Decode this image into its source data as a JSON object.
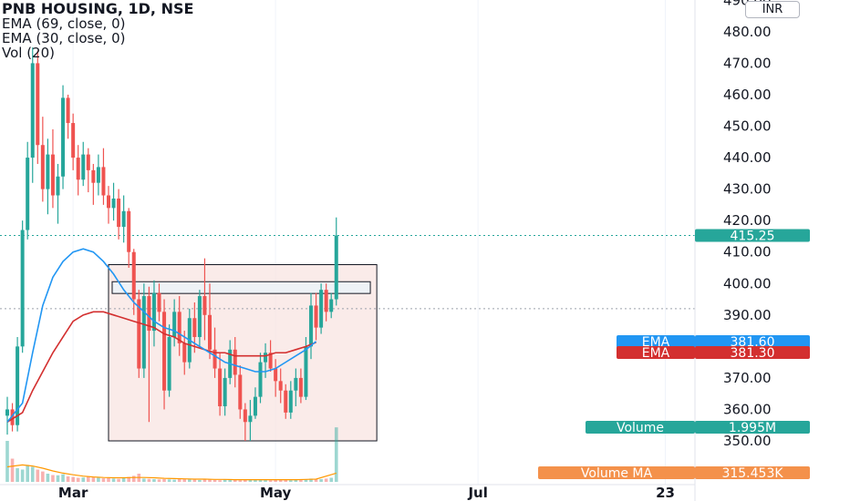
{
  "legend": {
    "title": "PNB HOUSING, 1D, NSE",
    "ema69": "EMA (69, close, 0)",
    "ema30": "EMA (30, close, 0)",
    "vol": "Vol (20)"
  },
  "currency": "INR",
  "colors": {
    "up": "#26a69a",
    "down": "#ef5350",
    "ema_short": "#2196f3",
    "ema_long": "#d32f2f",
    "volume_ma": "#ff9800",
    "box_fill": "#f8e4e2",
    "box_stroke": "#131722",
    "dotted": "#26a69a"
  },
  "labels": {
    "price": {
      "text": "415.25",
      "color": "#26a69a"
    },
    "ema1": {
      "name": "EMA",
      "value": "381.60",
      "color": "#2196f3"
    },
    "ema2": {
      "name": "EMA",
      "value": "381.30",
      "color": "#d32f2f"
    },
    "volume": {
      "name": "Volume",
      "value": "1.995M",
      "color": "#26a69a"
    },
    "volume_ma": {
      "name": "Volume MA",
      "value": "315.453K",
      "color": "#f4914b"
    }
  },
  "chart_data": {
    "type": "candlestick",
    "title": "PNB HOUSING, 1D, NSE",
    "y_ticks": [
      "490.00",
      "480.00",
      "470.00",
      "460.00",
      "450.00",
      "440.00",
      "430.00",
      "420.00",
      "410.00",
      "400.00",
      "390.00",
      "380.00",
      "370.00",
      "360.00",
      "350.00"
    ],
    "x_ticks": [
      "Mar",
      "May",
      "Jul",
      "23"
    ],
    "ylim": [
      345,
      490
    ],
    "x_tick_positions": [
      {
        "label": "Mar",
        "i": 13
      },
      {
        "label": "May",
        "i": 53
      },
      {
        "label": "Jul",
        "i": 93
      },
      {
        "label": "23",
        "i": 130
      }
    ],
    "candles": [
      [
        358,
        364,
        352,
        360
      ],
      [
        360,
        362,
        353,
        355
      ],
      [
        355,
        383,
        353,
        380
      ],
      [
        380,
        420,
        378,
        417
      ],
      [
        417,
        445,
        414,
        440
      ],
      [
        440,
        475,
        432,
        470
      ],
      [
        470,
        474,
        438,
        444
      ],
      [
        444,
        453,
        426,
        430
      ],
      [
        430,
        446,
        422,
        441
      ],
      [
        441,
        449,
        424,
        428
      ],
      [
        428,
        438,
        419,
        434
      ],
      [
        434,
        463,
        430,
        459
      ],
      [
        459,
        460,
        446,
        451
      ],
      [
        451,
        454,
        436,
        440
      ],
      [
        440,
        444,
        428,
        433
      ],
      [
        433,
        445,
        431,
        441
      ],
      [
        441,
        443,
        429,
        436
      ],
      [
        436,
        438,
        425,
        432
      ],
      [
        432,
        441,
        428,
        437
      ],
      [
        437,
        443,
        425,
        428
      ],
      [
        428,
        431,
        419,
        424
      ],
      [
        424,
        432,
        420,
        427
      ],
      [
        427,
        430,
        414,
        418
      ],
      [
        418,
        428,
        413,
        423
      ],
      [
        423,
        424,
        405,
        410
      ],
      [
        410,
        411,
        390,
        395
      ],
      [
        395,
        398,
        370,
        373
      ],
      [
        373,
        400,
        370,
        396
      ],
      [
        396,
        399,
        356,
        385
      ],
      [
        385,
        401,
        380,
        397
      ],
      [
        397,
        400,
        388,
        391
      ],
      [
        391,
        395,
        360,
        366
      ],
      [
        366,
        387,
        364,
        383
      ],
      [
        383,
        395,
        380,
        391
      ],
      [
        391,
        396,
        377,
        381
      ],
      [
        381,
        385,
        371,
        375
      ],
      [
        375,
        392,
        373,
        389
      ],
      [
        389,
        394,
        378,
        383
      ],
      [
        383,
        398,
        380,
        396
      ],
      [
        396,
        408,
        382,
        390
      ],
      [
        390,
        400,
        376,
        379
      ],
      [
        379,
        386,
        370,
        373
      ],
      [
        373,
        378,
        358,
        361
      ],
      [
        361,
        373,
        358,
        370
      ],
      [
        370,
        382,
        368,
        379
      ],
      [
        379,
        383,
        367,
        371
      ],
      [
        371,
        374,
        357,
        360
      ],
      [
        360,
        362,
        350,
        356
      ],
      [
        356,
        363,
        350,
        358
      ],
      [
        358,
        367,
        357,
        364
      ],
      [
        364,
        378,
        362,
        375
      ],
      [
        375,
        381,
        370,
        378
      ],
      [
        378,
        382,
        372,
        373
      ],
      [
        373,
        376,
        364,
        369
      ],
      [
        369,
        373,
        362,
        366
      ],
      [
        366,
        368,
        357,
        359
      ],
      [
        359,
        369,
        357,
        366
      ],
      [
        366,
        373,
        361,
        370
      ],
      [
        370,
        373,
        362,
        364
      ],
      [
        364,
        383,
        363,
        380
      ],
      [
        380,
        397,
        376,
        393
      ],
      [
        393,
        397,
        382,
        386
      ],
      [
        386,
        400,
        384,
        398
      ],
      [
        398,
        400,
        388,
        391
      ],
      [
        391,
        397,
        389,
        395
      ],
      [
        395,
        421,
        393,
        415.25
      ]
    ],
    "volume": [
      1.5,
      0.85,
      0.5,
      0.45,
      0.62,
      0.55,
      0.45,
      0.38,
      0.3,
      0.25,
      0.24,
      0.28,
      0.2,
      0.18,
      0.15,
      0.16,
      0.19,
      0.16,
      0.15,
      0.13,
      0.14,
      0.12,
      0.11,
      0.15,
      0.18,
      0.22,
      0.3,
      0.12,
      0.11,
      0.1,
      0.09,
      0.1,
      0.09,
      0.08,
      0.12,
      0.11,
      0.09,
      0.08,
      0.07,
      0.1,
      0.08,
      0.07,
      0.06,
      0.09,
      0.08,
      0.07,
      0.06,
      0.08,
      0.07,
      0.09,
      0.08,
      0.07,
      0.06,
      0.08,
      0.07,
      0.07,
      0.06,
      0.08,
      0.09,
      0.1,
      0.12,
      0.11,
      0.1,
      0.12,
      0.15,
      1.995
    ],
    "ema_short_points": [
      [
        0,
        356
      ],
      [
        3,
        362
      ],
      [
        5,
        378
      ],
      [
        7,
        393
      ],
      [
        9,
        402
      ],
      [
        11,
        407
      ],
      [
        13,
        410
      ],
      [
        15,
        411
      ],
      [
        17,
        410
      ],
      [
        19,
        407
      ],
      [
        21,
        403
      ],
      [
        23,
        398
      ],
      [
        25,
        394
      ],
      [
        27,
        391
      ],
      [
        29,
        388
      ],
      [
        31,
        386
      ],
      [
        33,
        385
      ],
      [
        35,
        383
      ],
      [
        37,
        381
      ],
      [
        39,
        379
      ],
      [
        41,
        377
      ],
      [
        43,
        375
      ],
      [
        45,
        374
      ],
      [
        47,
        373
      ],
      [
        49,
        372
      ],
      [
        51,
        372
      ],
      [
        53,
        373
      ],
      [
        55,
        375
      ],
      [
        57,
        377
      ],
      [
        59,
        379
      ],
      [
        61,
        381.6
      ]
    ],
    "ema_long_points": [
      [
        0,
        356
      ],
      [
        3,
        359
      ],
      [
        5,
        366
      ],
      [
        7,
        372
      ],
      [
        9,
        378
      ],
      [
        11,
        383
      ],
      [
        13,
        388
      ],
      [
        15,
        390
      ],
      [
        17,
        391
      ],
      [
        19,
        391
      ],
      [
        21,
        390
      ],
      [
        23,
        389
      ],
      [
        25,
        388
      ],
      [
        27,
        387
      ],
      [
        29,
        386
      ],
      [
        31,
        384
      ],
      [
        33,
        383
      ],
      [
        35,
        381
      ],
      [
        37,
        380
      ],
      [
        39,
        379
      ],
      [
        41,
        378
      ],
      [
        43,
        378
      ],
      [
        45,
        377
      ],
      [
        47,
        377
      ],
      [
        49,
        377
      ],
      [
        51,
        377
      ],
      [
        53,
        378
      ],
      [
        55,
        378
      ],
      [
        57,
        379
      ],
      [
        59,
        380
      ],
      [
        61,
        381.3
      ]
    ],
    "volume_ma_points": [
      [
        0,
        0.55
      ],
      [
        3,
        0.62
      ],
      [
        5,
        0.58
      ],
      [
        7,
        0.5
      ],
      [
        9,
        0.4
      ],
      [
        11,
        0.32
      ],
      [
        13,
        0.26
      ],
      [
        15,
        0.21
      ],
      [
        17,
        0.18
      ],
      [
        19,
        0.16
      ],
      [
        21,
        0.15
      ],
      [
        23,
        0.15
      ],
      [
        25,
        0.16
      ],
      [
        27,
        0.16
      ],
      [
        29,
        0.15
      ],
      [
        31,
        0.13
      ],
      [
        33,
        0.12
      ],
      [
        35,
        0.11
      ],
      [
        37,
        0.1
      ],
      [
        39,
        0.1
      ],
      [
        41,
        0.09
      ],
      [
        43,
        0.09
      ],
      [
        45,
        0.08
      ],
      [
        47,
        0.08
      ],
      [
        49,
        0.08
      ],
      [
        51,
        0.08
      ],
      [
        53,
        0.08
      ],
      [
        55,
        0.08
      ],
      [
        57,
        0.08
      ],
      [
        59,
        0.09
      ],
      [
        61,
        0.1
      ],
      [
        65,
        0.32
      ]
    ],
    "consolidation_box": {
      "i0": 20,
      "i1": 73,
      "y0": 350,
      "y1": 406
    },
    "resistance_rect": {
      "i0": 20,
      "i1": 71,
      "y0": 398,
      "y1": 400
    },
    "dotted_lines": [
      415.25,
      392
    ]
  }
}
